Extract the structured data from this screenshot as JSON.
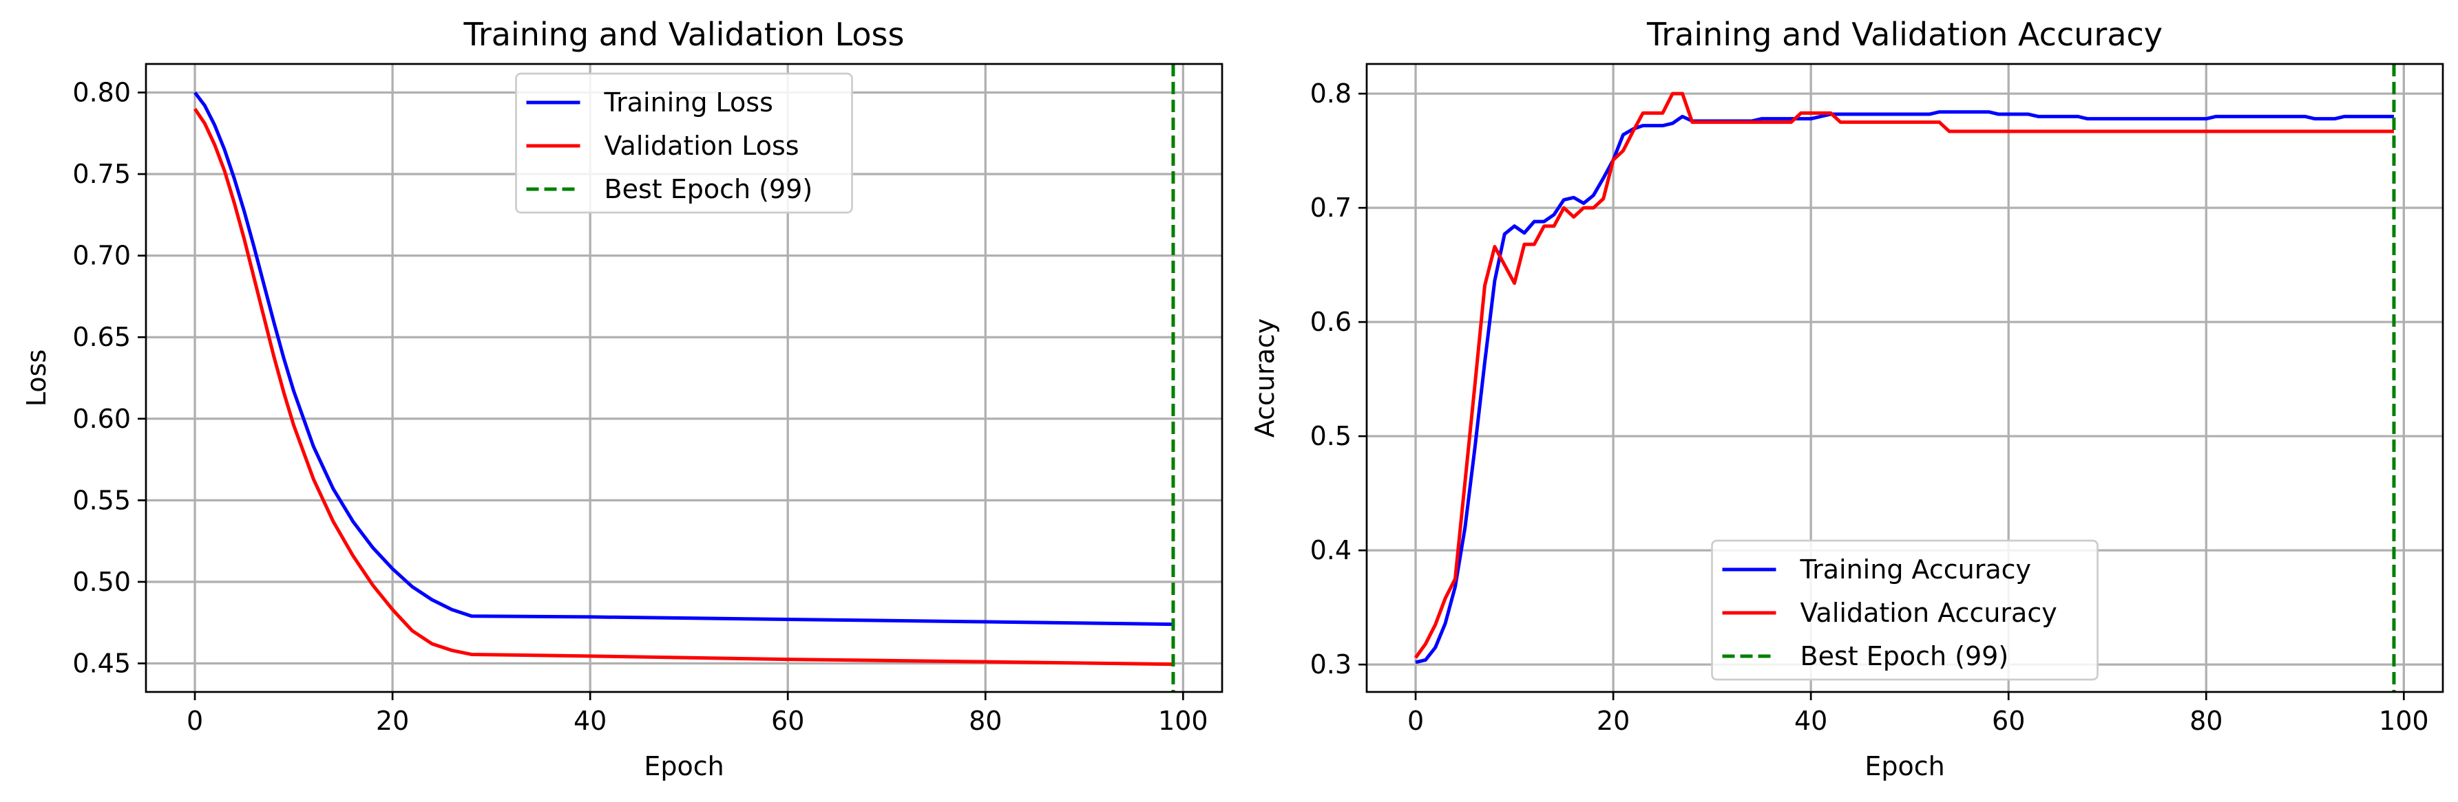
{
  "chart_data": [
    {
      "type": "line",
      "title": "Training and Validation Loss",
      "xlabel": "Epoch",
      "ylabel": "Loss",
      "xlim": [
        -4.95,
        103.95
      ],
      "ylim": [
        0.4325,
        0.8175
      ],
      "xticks": [
        0,
        20,
        40,
        60,
        80,
        100
      ],
      "xtick_labels": [
        "0",
        "20",
        "40",
        "60",
        "80",
        "100"
      ],
      "yticks": [
        0.45,
        0.5,
        0.55,
        0.6,
        0.65,
        0.7,
        0.75,
        0.8
      ],
      "ytick_labels": [
        "0.45",
        "0.50",
        "0.55",
        "0.60",
        "0.65",
        "0.70",
        "0.75",
        "0.80"
      ],
      "grid": true,
      "legend": "upper center",
      "series": [
        {
          "name": "Training Loss",
          "color": "#0000ff",
          "style": "solid",
          "points": [
            [
              0,
              0.8
            ],
            [
              1,
              0.792
            ],
            [
              2,
              0.78
            ],
            [
              3,
              0.765
            ],
            [
              4,
              0.747
            ],
            [
              5,
              0.727
            ],
            [
              6,
              0.705
            ],
            [
              7,
              0.682
            ],
            [
              8,
              0.659
            ],
            [
              9,
              0.637
            ],
            [
              10,
              0.617
            ],
            [
              12,
              0.583
            ],
            [
              14,
              0.557
            ],
            [
              16,
              0.537
            ],
            [
              18,
              0.521
            ],
            [
              20,
              0.508
            ],
            [
              22,
              0.497
            ],
            [
              24,
              0.489
            ],
            [
              26,
              0.483
            ],
            [
              28,
              0.479
            ],
            [
              40,
              0.4785
            ],
            [
              60,
              0.477
            ],
            [
              80,
              0.4755
            ],
            [
              99,
              0.474
            ]
          ]
        },
        {
          "name": "Validation Loss",
          "color": "#ff0000",
          "style": "solid",
          "points": [
            [
              0,
              0.79
            ],
            [
              1,
              0.781
            ],
            [
              2,
              0.768
            ],
            [
              3,
              0.752
            ],
            [
              4,
              0.732
            ],
            [
              5,
              0.71
            ],
            [
              6,
              0.686
            ],
            [
              7,
              0.662
            ],
            [
              8,
              0.638
            ],
            [
              9,
              0.616
            ],
            [
              10,
              0.596
            ],
            [
              12,
              0.563
            ],
            [
              14,
              0.537
            ],
            [
              16,
              0.516
            ],
            [
              18,
              0.498
            ],
            [
              20,
              0.483
            ],
            [
              22,
              0.47
            ],
            [
              24,
              0.462
            ],
            [
              26,
              0.458
            ],
            [
              28,
              0.4555
            ],
            [
              40,
              0.4545
            ],
            [
              60,
              0.4525
            ],
            [
              80,
              0.451
            ],
            [
              99,
              0.4495
            ]
          ]
        }
      ],
      "vline": {
        "name": "Best Epoch (99)",
        "x": 99,
        "color": "#008000",
        "style": "dashed"
      }
    },
    {
      "type": "line",
      "title": "Training and Validation Accuracy",
      "xlabel": "Epoch",
      "ylabel": "Accuracy",
      "xlim": [
        -4.95,
        103.95
      ],
      "ylim": [
        0.276,
        0.826
      ],
      "xticks": [
        0,
        20,
        40,
        60,
        80,
        100
      ],
      "xtick_labels": [
        "0",
        "20",
        "40",
        "60",
        "80",
        "100"
      ],
      "yticks": [
        0.3,
        0.4,
        0.5,
        0.6,
        0.7,
        0.8
      ],
      "ytick_labels": [
        "0.3",
        "0.4",
        "0.5",
        "0.6",
        "0.7",
        "0.8"
      ],
      "grid": true,
      "legend": "lower center",
      "series": [
        {
          "name": "Training Accuracy",
          "color": "#0000ff",
          "style": "solid",
          "points": [
            [
              0,
              0.302
            ],
            [
              1,
              0.304
            ],
            [
              2,
              0.315
            ],
            [
              3,
              0.336
            ],
            [
              4,
              0.368
            ],
            [
              5,
              0.42
            ],
            [
              6,
              0.49
            ],
            [
              7,
              0.565
            ],
            [
              8,
              0.636
            ],
            [
              9,
              0.677
            ],
            [
              10,
              0.684
            ],
            [
              11,
              0.678
            ],
            [
              12,
              0.688
            ],
            [
              13,
              0.688
            ],
            [
              14,
              0.694
            ],
            [
              15,
              0.707
            ],
            [
              16,
              0.709
            ],
            [
              17,
              0.704
            ],
            [
              18,
              0.711
            ],
            [
              19,
              0.726
            ],
            [
              20,
              0.742
            ],
            [
              21,
              0.764
            ],
            [
              22,
              0.769
            ],
            [
              23,
              0.772
            ],
            [
              24,
              0.772
            ],
            [
              25,
              0.772
            ],
            [
              26,
              0.774
            ],
            [
              27,
              0.78
            ],
            [
              28,
              0.776
            ],
            [
              34,
              0.776
            ],
            [
              35,
              0.778
            ],
            [
              40,
              0.778
            ],
            [
              41,
              0.78
            ],
            [
              42,
              0.782
            ],
            [
              52,
              0.782
            ],
            [
              53,
              0.784
            ],
            [
              58,
              0.784
            ],
            [
              59,
              0.782
            ],
            [
              62,
              0.782
            ],
            [
              63,
              0.78
            ],
            [
              67,
              0.78
            ],
            [
              68,
              0.778
            ],
            [
              80,
              0.778
            ],
            [
              81,
              0.78
            ],
            [
              90,
              0.78
            ],
            [
              91,
              0.778
            ],
            [
              93,
              0.778
            ],
            [
              94,
              0.78
            ],
            [
              99,
              0.78
            ]
          ]
        },
        {
          "name": "Validation Accuracy",
          "color": "#ff0000",
          "style": "solid",
          "points": [
            [
              0,
              0.306
            ],
            [
              1,
              0.318
            ],
            [
              2,
              0.335
            ],
            [
              3,
              0.358
            ],
            [
              4,
              0.375
            ],
            [
              5,
              0.46
            ],
            [
              6,
              0.545
            ],
            [
              7,
              0.632
            ],
            [
              8,
              0.666
            ],
            [
              9,
              0.65
            ],
            [
              10,
              0.634
            ],
            [
              11,
              0.668
            ],
            [
              12,
              0.668
            ],
            [
              13,
              0.684
            ],
            [
              14,
              0.684
            ],
            [
              15,
              0.7
            ],
            [
              16,
              0.692
            ],
            [
              17,
              0.7
            ],
            [
              18,
              0.7
            ],
            [
              19,
              0.708
            ],
            [
              20,
              0.742
            ],
            [
              21,
              0.75
            ],
            [
              22,
              0.767
            ],
            [
              23,
              0.783
            ],
            [
              24,
              0.783
            ],
            [
              25,
              0.783
            ],
            [
              26,
              0.8
            ],
            [
              27,
              0.8
            ],
            [
              28,
              0.775
            ],
            [
              38,
              0.775
            ],
            [
              39,
              0.783
            ],
            [
              42,
              0.783
            ],
            [
              43,
              0.775
            ],
            [
              53,
              0.775
            ],
            [
              54,
              0.767
            ],
            [
              99,
              0.767
            ]
          ]
        }
      ],
      "vline": {
        "name": "Best Epoch (99)",
        "x": 99,
        "color": "#008000",
        "style": "dashed"
      }
    }
  ]
}
